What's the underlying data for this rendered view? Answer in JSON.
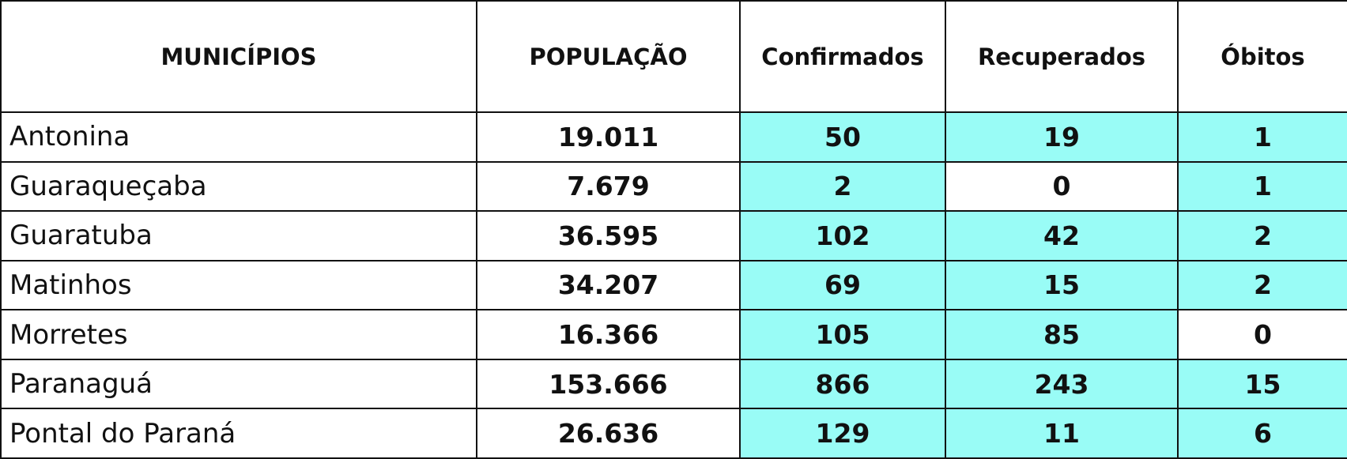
{
  "table": {
    "header": [
      "MUNICÍPIOS",
      "POPULAÇÃO",
      "Confirmados",
      "Recuperados",
      "Óbitos"
    ],
    "rows": [
      [
        "Antonina",
        "19.011",
        "50",
        "19",
        "1"
      ],
      [
        "Guaraqueçaba",
        "7.679",
        "2",
        "0",
        "1"
      ],
      [
        "Guaratuba",
        "36.595",
        "102",
        "42",
        "2"
      ],
      [
        "Matinhos",
        "34.207",
        "69",
        "15",
        "2"
      ],
      [
        "Morretes",
        "16.366",
        "105",
        "85",
        "0"
      ],
      [
        "Paranaguá",
        "153.666",
        "866",
        "243",
        "15"
      ],
      [
        "Pontal do Paraná",
        "26.636",
        "129",
        "11",
        "6"
      ]
    ]
  }
}
